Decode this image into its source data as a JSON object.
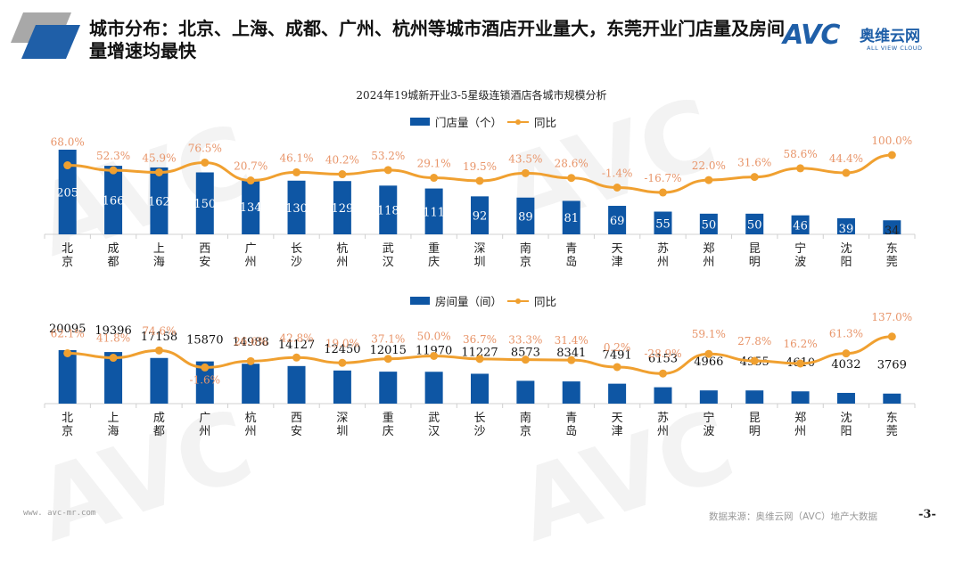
{
  "header": {
    "title": "城市分布：北京、上海、成都、广州、杭州等城市酒店开业量大，东莞开业门店量及房间量增速均最快",
    "logo": {
      "mark": "AVC",
      "name_cn": "奥维云网",
      "name_en": "ALL VIEW CLOUD"
    }
  },
  "colors": {
    "bar": "#0e56a4",
    "line": "#f0a030",
    "pct_label": "#e8956a",
    "accent_gray": "#a8a8a8"
  },
  "chart_title": "2024年19城新开业3-5星级连锁酒店各城市规模分析",
  "legends": {
    "chart1": {
      "bar": "门店量（个）",
      "line": "同比"
    },
    "chart2": {
      "bar": "房间量（间）",
      "line": "同比"
    }
  },
  "chart_data": [
    {
      "type": "bar",
      "title": "2024年19城新开业3-5星级连锁酒店各城市规模分析",
      "categories": [
        "北京",
        "成都",
        "上海",
        "西安",
        "广州",
        "长沙",
        "杭州",
        "武汉",
        "重庆",
        "深圳",
        "南京",
        "青岛",
        "天津",
        "苏州",
        "郑州",
        "昆明",
        "宁波",
        "沈阳",
        "东莞"
      ],
      "series": [
        {
          "name": "门店量（个）",
          "type": "bar",
          "values": [
            205,
            166,
            162,
            150,
            134,
            130,
            129,
            118,
            111,
            92,
            89,
            81,
            69,
            55,
            50,
            50,
            46,
            39,
            34
          ]
        },
        {
          "name": "同比",
          "type": "line",
          "unit": "%",
          "values": [
            68.0,
            52.3,
            45.9,
            76.5,
            20.7,
            46.1,
            40.2,
            53.2,
            29.1,
            19.5,
            43.5,
            28.6,
            -1.4,
            -16.7,
            22.0,
            31.6,
            58.6,
            44.4,
            100.0
          ]
        }
      ],
      "bar_labels": [
        "205",
        "166",
        "162",
        "150",
        "134",
        "130",
        "129",
        "118",
        "111",
        "92",
        "89",
        "81",
        "69",
        "55",
        "50",
        "50",
        "46",
        "39",
        "34"
      ],
      "line_labels": [
        "68.0%",
        "52.3%",
        "45.9%",
        "76.5%",
        "20.7%",
        "46.1%",
        "40.2%",
        "53.2%",
        "29.1%",
        "19.5%",
        "43.5%",
        "28.6%",
        "-1.4%",
        "-16.7%",
        "22.0%",
        "31.6%",
        "58.6%",
        "44.4%",
        "100.0%"
      ],
      "legend": "top-center",
      "grid": false
    },
    {
      "type": "bar",
      "title": "",
      "categories": [
        "北京",
        "上海",
        "成都",
        "广州",
        "杭州",
        "西安",
        "深圳",
        "重庆",
        "武汉",
        "长沙",
        "南京",
        "青岛",
        "天津",
        "苏州",
        "宁波",
        "昆明",
        "郑州",
        "沈阳",
        "东莞"
      ],
      "series": [
        {
          "name": "房间量（间）",
          "type": "bar",
          "values": [
            20095,
            19396,
            17158,
            15870,
            14988,
            14127,
            12450,
            12015,
            11970,
            11227,
            8573,
            8341,
            7491,
            6153,
            4966,
            4955,
            4610,
            4032,
            3769
          ]
        },
        {
          "name": "同比",
          "type": "line",
          "unit": "%",
          "values": [
            62.1,
            41.8,
            74.6,
            -1.6,
            26.6,
            42.8,
            19.0,
            37.1,
            50.0,
            36.7,
            33.3,
            31.4,
            0.2,
            -28.9,
            59.1,
            27.8,
            16.2,
            61.3,
            137.0
          ]
        }
      ],
      "bar_labels": [
        "20095",
        "19396",
        "17158",
        "15870",
        "14988",
        "14127",
        "12450",
        "12015",
        "11970",
        "11227",
        "8573",
        "8341",
        "7491",
        "6153",
        "4966",
        "4955",
        "4610",
        "4032",
        "3769"
      ],
      "line_labels": [
        "62.1%",
        "41.8%",
        "74.6%",
        "-1.6%",
        "26.6%",
        "42.8%",
        "19.0%",
        "37.1%",
        "50.0%",
        "36.7%",
        "33.3%",
        "31.4%",
        "0.2%",
        "-28.9%",
        "59.1%",
        "27.8%",
        "16.2%",
        "61.3%",
        "137.0%"
      ],
      "legend": "top-center",
      "grid": false
    }
  ],
  "footer": {
    "url": "www. avc-mr.com",
    "source": "数据来源：奥维云网（AVC）地产大数据",
    "page": "-3-"
  }
}
